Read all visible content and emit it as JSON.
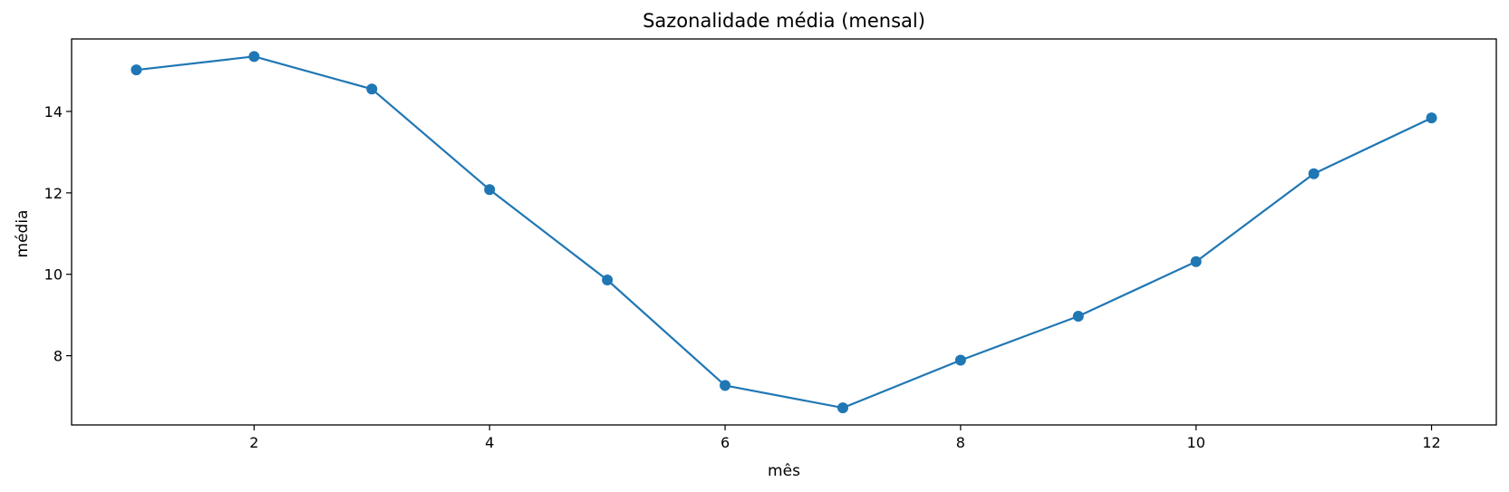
{
  "chart_data": {
    "type": "line",
    "title": "Sazonalidade média (mensal)",
    "xlabel": "mês",
    "ylabel": "média",
    "xlim": [
      0.45,
      12.55
    ],
    "ylim": [
      6.3,
      15.78
    ],
    "x_ticks": [
      2,
      4,
      6,
      8,
      10,
      12
    ],
    "y_ticks": [
      8,
      10,
      12,
      14
    ],
    "grid": false,
    "legend": "none",
    "series": [
      {
        "color": "#1f77b4",
        "marker": "circle",
        "x": [
          1,
          2,
          3,
          4,
          5,
          6,
          7,
          8,
          9,
          10,
          11,
          12
        ],
        "y": [
          15.02,
          15.35,
          14.55,
          12.08,
          9.86,
          7.27,
          6.72,
          7.89,
          8.97,
          10.31,
          12.47,
          13.84
        ]
      }
    ]
  }
}
